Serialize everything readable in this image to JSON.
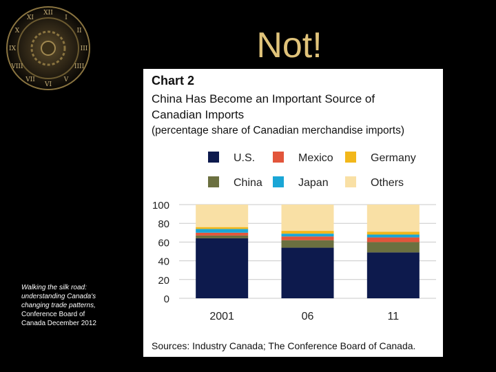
{
  "slide": {
    "title": "Not!",
    "caption_italic": "Walking the silk road: understanding Canada's changing trade patterns,",
    "caption_regular": "Conference Board of Canada December 2012"
  },
  "colors": {
    "background": "#000000",
    "title": "#e0c37a",
    "panel": "#ffffff"
  },
  "chart_data": {
    "type": "bar",
    "stacked": true,
    "title": "Chart 2",
    "subtitle": "China Has Become an Important Source of Canadian Imports",
    "subtitle_note": "(percentage share of Canadian merchandise imports)",
    "source": "Sources: Industry Canada; The Conference Board of Canada.",
    "categories": [
      "2001",
      "06",
      "11"
    ],
    "ylim": [
      0,
      100
    ],
    "yticks": [
      100,
      80,
      60,
      40,
      20,
      0
    ],
    "grid": true,
    "legend_position": "top",
    "series": [
      {
        "name": "U.S.",
        "color": "#0d1a4d",
        "values": [
          64,
          54,
          49
        ]
      },
      {
        "name": "China",
        "color": "#6b7040",
        "values": [
          3,
          8,
          11
        ]
      },
      {
        "name": "Mexico",
        "color": "#e2553b",
        "values": [
          3,
          4,
          5
        ]
      },
      {
        "name": "Japan",
        "color": "#1aa6d6",
        "values": [
          4,
          3,
          3
        ]
      },
      {
        "name": "Germany",
        "color": "#f2b71a",
        "values": [
          2,
          3,
          3
        ]
      },
      {
        "name": "Others",
        "color": "#f9e0a5",
        "values": [
          24,
          28,
          29
        ]
      }
    ]
  }
}
